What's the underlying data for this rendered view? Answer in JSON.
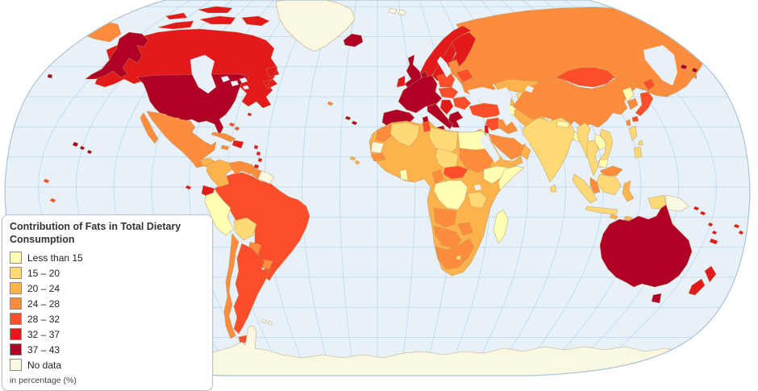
{
  "legend": {
    "title": "Contribution of Fats in Total Dietary Consumption",
    "note": "in percentage (%)",
    "items": [
      {
        "label": "Less than 15",
        "color": "#FFFFB2"
      },
      {
        "label": "15 – 20",
        "color": "#FED976"
      },
      {
        "label": "20 – 24",
        "color": "#FEB24C"
      },
      {
        "label": "24 – 28",
        "color": "#FD8D3C"
      },
      {
        "label": "28 – 32",
        "color": "#FC4E2A"
      },
      {
        "label": "32 – 37",
        "color": "#E31A1C"
      },
      {
        "label": "37 – 43",
        "color": "#B10026"
      },
      {
        "label": "No data",
        "color": "#FAF8E1"
      }
    ]
  },
  "map": {
    "projection": "world-robinson",
    "ocean_color": "#E8F1F8",
    "graticule_color": "#C6DCEE",
    "outline_stroke": "#ACC3D6",
    "outside_color": "#FFFFFF",
    "border_color": "#B3925F",
    "regions": {
      "canada": "32 – 37",
      "arctic-canada": "32 – 37",
      "usa": "37 – 43",
      "alaska": "37 – 43",
      "aleutians": "37 – 43",
      "hawaii": "37 – 43",
      "greenland": "No data",
      "svalbard": "No data",
      "mexico": "24 – 28",
      "guatemala": "20 – 24",
      "honduras-nicaragua": "15 – 20",
      "costa-rica-panama": "24 – 28",
      "cuba": "24 – 28",
      "jamaica": "24 – 28",
      "hispaniola": "32 – 37",
      "bahamas": "28 – 32",
      "antilles": "32 – 37",
      "bermuda": "32 – 37",
      "colombia": "20 – 24",
      "venezuela": "24 – 28",
      "guyana": "24 – 28",
      "guianas": "No data",
      "ecuador": "32 – 37",
      "galapagos": "32 – 37",
      "peru": "Less than 15",
      "bolivia": "15 – 20",
      "brazil": "28 – 32",
      "paraguay": "24 – 28",
      "uruguay": "24 – 28",
      "chile": "24 – 28",
      "argentina": "28 – 32",
      "falklands": "No data",
      "pacific-specks": "28 – 32",
      "iceland": "37 – 43",
      "uk": "37 – 43",
      "ireland": "32 – 37",
      "norway": "32 – 37",
      "sweden": "32 – 37",
      "finland": "32 – 37",
      "denmark": "37 – 43",
      "west-europe": "37 – 43",
      "poland": "28 – 32",
      "central-europe": "28 – 32",
      "romania-bulgaria": "28 – 32",
      "balkans": "32 – 37",
      "baltics": "24 – 28",
      "belarus": "28 – 32",
      "ukraine": "24 – 28",
      "russia": "24 – 28",
      "chukotka-wrap": "24 – 28",
      "sakhalin": "24 – 28",
      "kazakhstan": "20 – 24",
      "uzbekistan": "15 – 20",
      "turkmenistan": "Less than 15",
      "kyrgyz-tajik": "15 – 20",
      "caucasus": "20 – 24",
      "turkey": "28 – 32",
      "syria-jordan": "28 – 32",
      "israel": "32 – 37",
      "iraq": "24 – 28",
      "iran": "20 – 24",
      "afghanistan": "No data",
      "pakistan": "24 – 28",
      "saudi-arabia": "24 – 28",
      "yemen": "20 – 24",
      "oman": "20 – 24",
      "india": "15 – 20",
      "nepal": "Less than 15",
      "bangladesh": "Less than 15",
      "sri-lanka": "15 – 20",
      "myanmar": "15 – 20",
      "thailand": "15 – 20",
      "laos": "Less than 15",
      "vietnam": "15 – 20",
      "cambodia": "Less than 15",
      "malaysia": "24 – 28",
      "borneo-malaysia": "24 – 28",
      "indonesia": "15 – 20",
      "sulawesi-lesser-sunda": "20 – 24",
      "philippines": "15 – 20",
      "china": "24 – 28",
      "mongolia": "28 – 32",
      "north-korea": "Less than 15",
      "south-korea": "24 – 28",
      "japan": "28 – 32",
      "taiwan": "24 – 28",
      "papua-new-guinea": "No data",
      "africa-west-base": "20 – 24",
      "morocco": "24 – 28",
      "western-sahara": "No data",
      "algeria": "15 – 20",
      "tunisia": "28 – 32",
      "libya": "15 – 20",
      "egypt": "Less than 15",
      "sudan": "24 – 28",
      "chad": "15 – 20",
      "ethiopia": "Less than 15",
      "somalia": "Less than 15",
      "senegal": "24 – 28",
      "ghana": "Less than 15",
      "cameroon": "24 – 28",
      "central-african-republic": "28 – 32",
      "dr-congo": "Less than 15",
      "tanzania": "15 – 20",
      "angola": "24 – 28",
      "zimbabwe": "24 – 28",
      "namibia-botswana": "24 – 28",
      "south-africa": "24 – 28",
      "lesotho": "15 – 20",
      "madagascar": "Less than 15",
      "australia": "37 – 43",
      "tasmania": "37 – 43",
      "new-zealand": "32 – 37",
      "pacific-islands": "32 – 37",
      "canary-islands": "37 – 43",
      "azores": "24 – 28",
      "cape-verde": "20 – 24",
      "antarctica": "No data"
    }
  }
}
